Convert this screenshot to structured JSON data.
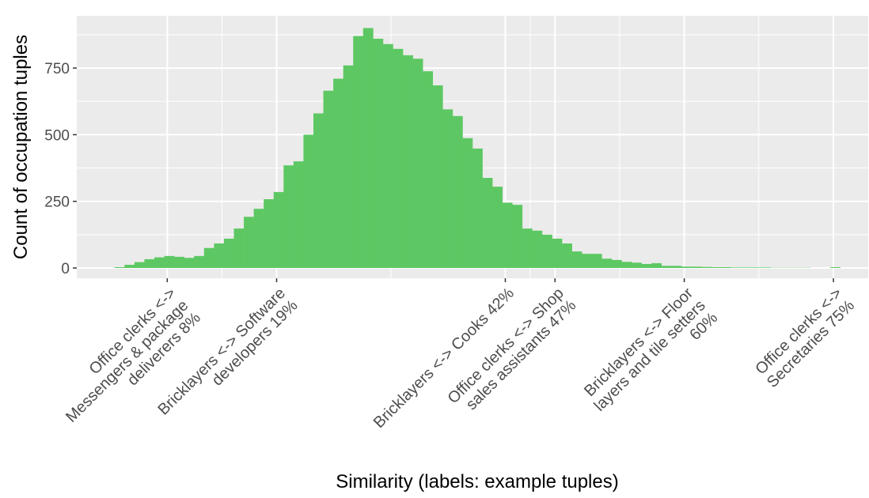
{
  "chart_data": {
    "type": "histogram",
    "xlabel": "Similarity (labels: example tuples)",
    "ylabel": "Count of occupation tuples",
    "color": "#5dc863",
    "bins": [
      2.7,
      3.7,
      4.7,
      5.7,
      6.7,
      7.7,
      8.7,
      9.7,
      10.7,
      11.7,
      12.7,
      13.7,
      14.7,
      15.7,
      16.7,
      17.7,
      18.7,
      19.7,
      20.7,
      21.7,
      22.7,
      23.7,
      24.7,
      25.7,
      26.7,
      27.7,
      28.7,
      29.7,
      30.7,
      31.7,
      32.7,
      33.7,
      34.7,
      35.7,
      36.7,
      37.7,
      38.7,
      39.7,
      40.7,
      41.7,
      42.7,
      43.7,
      44.7,
      45.7,
      46.7,
      47.7,
      48.7,
      49.7,
      50.7,
      51.7,
      52.7,
      53.7,
      54.7,
      55.7,
      56.7,
      57.7,
      58.7,
      59.7,
      60.7,
      61.7,
      62.7,
      63.7,
      64.7,
      65.7,
      66.7,
      67.7,
      68.7,
      69.7,
      70.7,
      71.7,
      72.7,
      73.7,
      74.7,
      75.7,
      76.7
    ],
    "values": [
      3,
      12,
      22,
      33,
      40,
      45,
      42,
      38,
      45,
      75,
      92,
      110,
      148,
      192,
      222,
      258,
      285,
      385,
      400,
      500,
      580,
      665,
      710,
      760,
      870,
      900,
      860,
      840,
      822,
      798,
      785,
      738,
      685,
      595,
      570,
      487,
      448,
      338,
      305,
      245,
      237,
      148,
      140,
      125,
      110,
      92,
      62,
      53,
      53,
      35,
      30,
      23,
      20,
      15,
      18,
      8,
      8,
      5,
      5,
      4,
      3,
      3,
      2,
      2,
      2,
      2,
      1,
      1,
      1,
      1,
      0,
      0,
      3,
      0
    ],
    "xlim": [
      -1.1,
      78.5
    ],
    "xticks": [
      {
        "value": 8,
        "label": "Office clerks <->\nMessengers & package\ndeliverers 8%"
      },
      {
        "value": 19,
        "label": "Bricklayers <-> Software\ndevelopers 19%"
      },
      {
        "value": 42,
        "label": "Bricklayers <-> Cooks 42%"
      },
      {
        "value": 47,
        "label": "Office clerks <-> Shop\nsales assistants 47%"
      },
      {
        "value": 60,
        "label": "Bricklayers <-> Floor\nlayers and tile setters\n60%"
      },
      {
        "value": 75,
        "label": "Office clerks <->\nSecretaries 75%"
      }
    ],
    "ylim": [
      -38.5,
      946
    ],
    "yticks": [
      0,
      250,
      500,
      750
    ],
    "grid": true
  }
}
